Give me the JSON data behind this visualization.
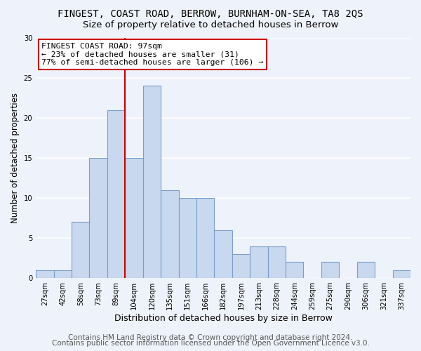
{
  "title": "FINGEST, COAST ROAD, BERROW, BURNHAM-ON-SEA, TA8 2QS",
  "subtitle": "Size of property relative to detached houses in Berrow",
  "xlabel": "Distribution of detached houses by size in Berrow",
  "ylabel": "Number of detached properties",
  "bar_labels": [
    "27sqm",
    "42sqm",
    "58sqm",
    "73sqm",
    "89sqm",
    "104sqm",
    "120sqm",
    "135sqm",
    "151sqm",
    "166sqm",
    "182sqm",
    "197sqm",
    "213sqm",
    "228sqm",
    "244sqm",
    "259sqm",
    "275sqm",
    "290sqm",
    "306sqm",
    "321sqm",
    "337sqm"
  ],
  "bar_values": [
    1,
    1,
    7,
    15,
    21,
    15,
    24,
    11,
    10,
    10,
    6,
    3,
    4,
    4,
    2,
    0,
    2,
    0,
    2,
    0,
    1
  ],
  "bar_color": "#c8d8ee",
  "bar_edge_color": "#7a9fcb",
  "ylim": [
    0,
    30
  ],
  "yticks": [
    0,
    5,
    10,
    15,
    20,
    25,
    30
  ],
  "vline_x": 4.5,
  "vline_color": "#cc0000",
  "annotation_title": "FINGEST COAST ROAD: 97sqm",
  "annotation_line1": "← 23% of detached houses are smaller (31)",
  "annotation_line2": "77% of semi-detached houses are larger (106) →",
  "annotation_box_color": "#ffffff",
  "annotation_box_edge": "#cc0000",
  "footer1": "Contains HM Land Registry data © Crown copyright and database right 2024.",
  "footer2": "Contains public sector information licensed under the Open Government Licence v3.0.",
  "bg_color": "#eef2fa",
  "plot_bg_color": "#eef2fa",
  "grid_color": "#ffffff",
  "title_fontsize": 10,
  "subtitle_fontsize": 9.5,
  "footer_fontsize": 7.5
}
